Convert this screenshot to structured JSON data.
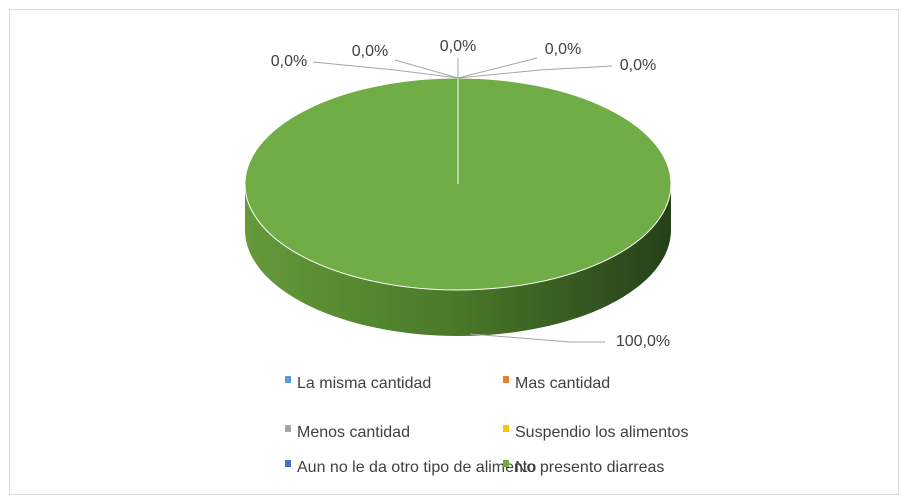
{
  "chart_data": {
    "type": "pie3d",
    "categories": [
      "La misma cantidad",
      "Mas cantidad",
      "Menos cantidad",
      "Suspendio los alimentos",
      "Aun no le da otro tipo de alimento",
      "No presento diarreas"
    ],
    "values": [
      0,
      0,
      0,
      0,
      0,
      100
    ],
    "value_labels": [
      "0,0%",
      "0,0%",
      "0,0%",
      "0,0%",
      "0,0%",
      "100,0%"
    ],
    "colors": [
      "#5b9bd5",
      "#ed7d31",
      "#a5a5a5",
      "#ffc000",
      "#4472c4",
      "#70ad47"
    ],
    "legend": "bottom"
  }
}
